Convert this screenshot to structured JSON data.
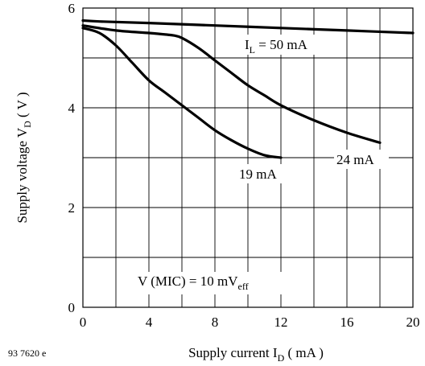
{
  "chart_data": {
    "type": "line",
    "xlabel": {
      "main": "Supply current I",
      "sub": "D",
      "unit": " ( mA )"
    },
    "ylabel": {
      "main": "Supply voltage V",
      "sub": "D",
      "unit": " ( V )"
    },
    "xlim": [
      0,
      20
    ],
    "ylim": [
      0,
      6
    ],
    "x_ticks": [
      "0",
      "4",
      "8",
      "12",
      "16",
      "20"
    ],
    "y_ticks": [
      "0",
      "2",
      "4",
      "6"
    ],
    "grid": true,
    "series": [
      {
        "name": "I_L = 50 mA",
        "x": [
          0,
          1,
          4,
          8,
          12,
          16,
          20
        ],
        "y": [
          5.75,
          5.73,
          5.7,
          5.65,
          5.6,
          5.55,
          5.5
        ]
      },
      {
        "name": "24 mA",
        "x": [
          0,
          2,
          4,
          5,
          5.5,
          6,
          7,
          8,
          9,
          10,
          11,
          12,
          14,
          16,
          18
        ],
        "y": [
          5.65,
          5.55,
          5.5,
          5.47,
          5.45,
          5.4,
          5.2,
          4.95,
          4.7,
          4.45,
          4.25,
          4.05,
          3.75,
          3.5,
          3.3
        ]
      },
      {
        "name": "19 mA",
        "x": [
          0,
          1,
          2,
          3,
          4,
          5,
          6,
          7,
          8,
          9,
          10,
          11,
          12
        ],
        "y": [
          5.6,
          5.5,
          5.25,
          4.9,
          4.55,
          4.3,
          4.05,
          3.8,
          3.55,
          3.35,
          3.18,
          3.05,
          3.0
        ]
      }
    ],
    "annotations": {
      "il_label": {
        "main": "I",
        "sub": "L",
        "rest": " = 50 mA"
      },
      "label_24": "24 mA",
      "label_19": "19 mA",
      "mic_label": {
        "main": "V (MIC) = 10 mV",
        "sub": "eff"
      }
    },
    "figure_id": "93 7620 e"
  }
}
